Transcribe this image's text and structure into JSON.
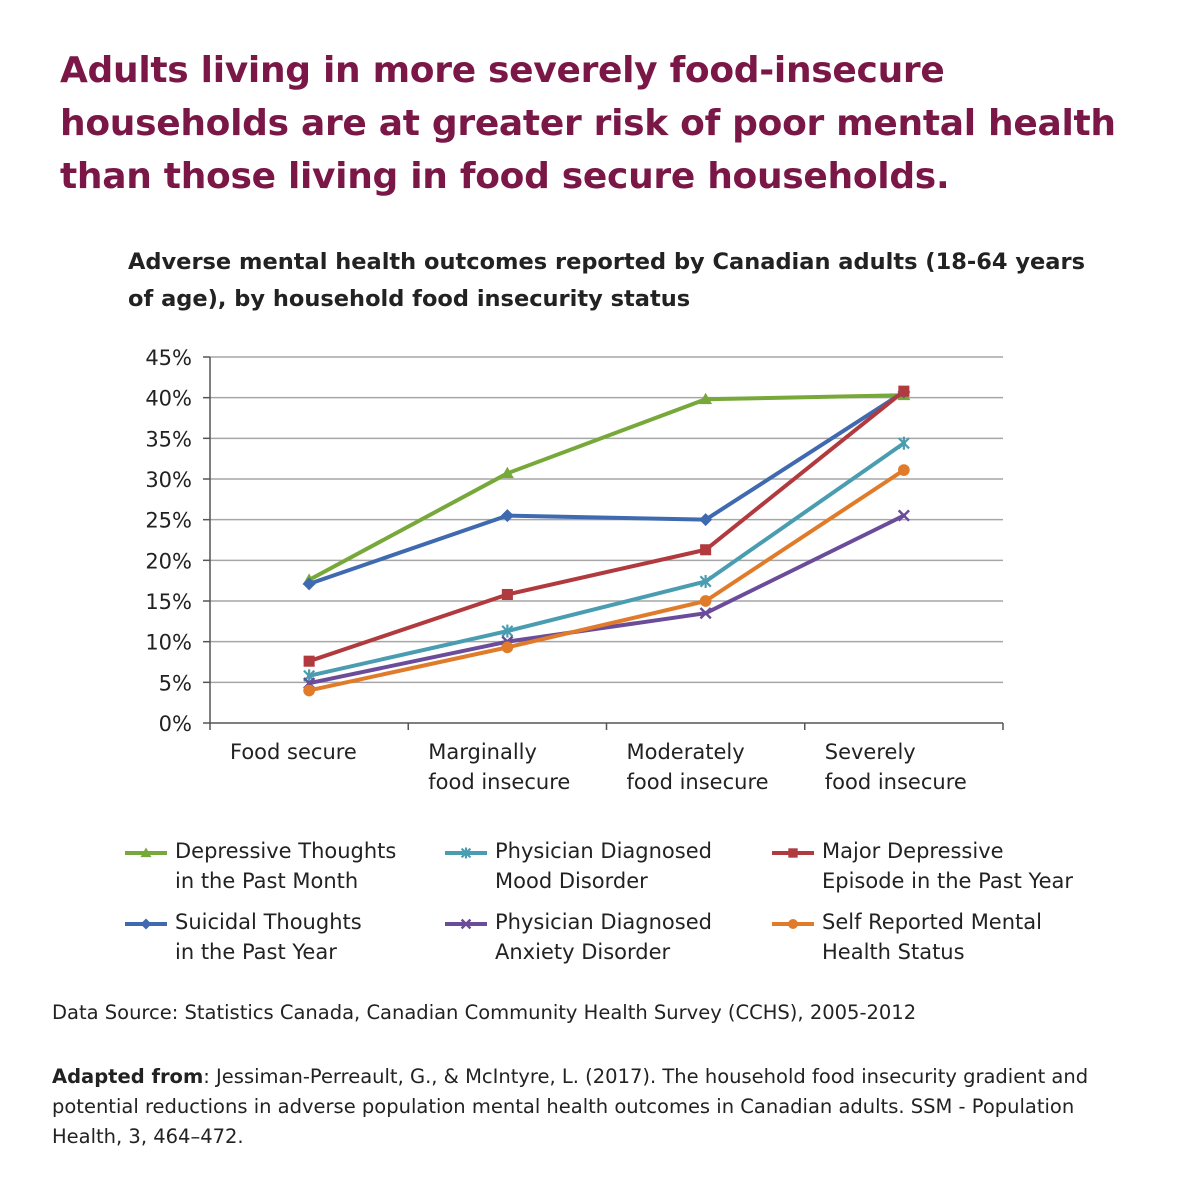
{
  "headline": "Adults living in more severely food-insecure households are at greater risk of poor mental health than those living in food secure households.",
  "chart_data": {
    "type": "line",
    "title": "Adverse mental health outcomes reported by Canadian adults (18-64 years of age), by household food insecurity status",
    "categories": [
      [
        "Food secure"
      ],
      [
        "Marginally",
        "food insecure"
      ],
      [
        "Moderately",
        "food insecure"
      ],
      [
        "Severely",
        "food insecure"
      ]
    ],
    "ylim": [
      0,
      45
    ],
    "yticks": [
      0,
      5,
      10,
      15,
      20,
      25,
      30,
      35,
      40,
      45
    ],
    "ytick_labels": [
      "0%",
      "5%",
      "10%",
      "15%",
      "20%",
      "25%",
      "30%",
      "35%",
      "40%",
      "45%"
    ],
    "grid": true,
    "legend_position": "bottom",
    "series": [
      {
        "name": "Depressive Thoughts in the Past Month",
        "label_lines": [
          "Depressive Thoughts",
          "in the Past Month"
        ],
        "marker": "triangle",
        "color": "#77a83a",
        "values": [
          17.6,
          30.7,
          39.8,
          40.3
        ]
      },
      {
        "name": "Suicidal Thoughts in the Past Year",
        "label_lines": [
          "Suicidal Thoughts",
          "in the Past Year"
        ],
        "marker": "diamond",
        "color": "#3f6aaf",
        "values": [
          17.1,
          25.5,
          25.0,
          40.7
        ]
      },
      {
        "name": "Physician Diagnosed Mood Disorder",
        "label_lines": [
          "Physician Diagnosed",
          "Mood Disorder"
        ],
        "marker": "star",
        "color": "#4a9db0",
        "values": [
          5.8,
          11.3,
          17.4,
          34.4
        ]
      },
      {
        "name": "Physician Diagnosed Anxiety Disorder",
        "label_lines": [
          "Physician Diagnosed",
          "Anxiety Disorder"
        ],
        "marker": "x",
        "color": "#6b4c9a",
        "values": [
          4.9,
          10.0,
          13.5,
          25.5
        ]
      },
      {
        "name": "Major Depressive Episode in the Past Year",
        "label_lines": [
          "Major Depressive",
          "Episode in the Past Year"
        ],
        "marker": "square",
        "color": "#b13a3e",
        "values": [
          7.6,
          15.8,
          21.3,
          40.8
        ]
      },
      {
        "name": "Self Reported Mental Health Status",
        "label_lines": [
          "Self Reported Mental",
          "Health Status"
        ],
        "marker": "circle",
        "color": "#e07b2a",
        "values": [
          4.0,
          9.3,
          15.0,
          31.1
        ]
      }
    ]
  },
  "source": "Data Source: Statistics Canada, Canadian Community Health Survey (CCHS), 2005-2012",
  "citation": {
    "label": "Adapted from",
    "text": ": Jessiman-Perreault, G., & McIntyre, L. (2017). The household food insecurity gradient and potential reductions in adverse population mental health outcomes in Canadian adults. SSM - Population Health, 3, 464–472."
  }
}
